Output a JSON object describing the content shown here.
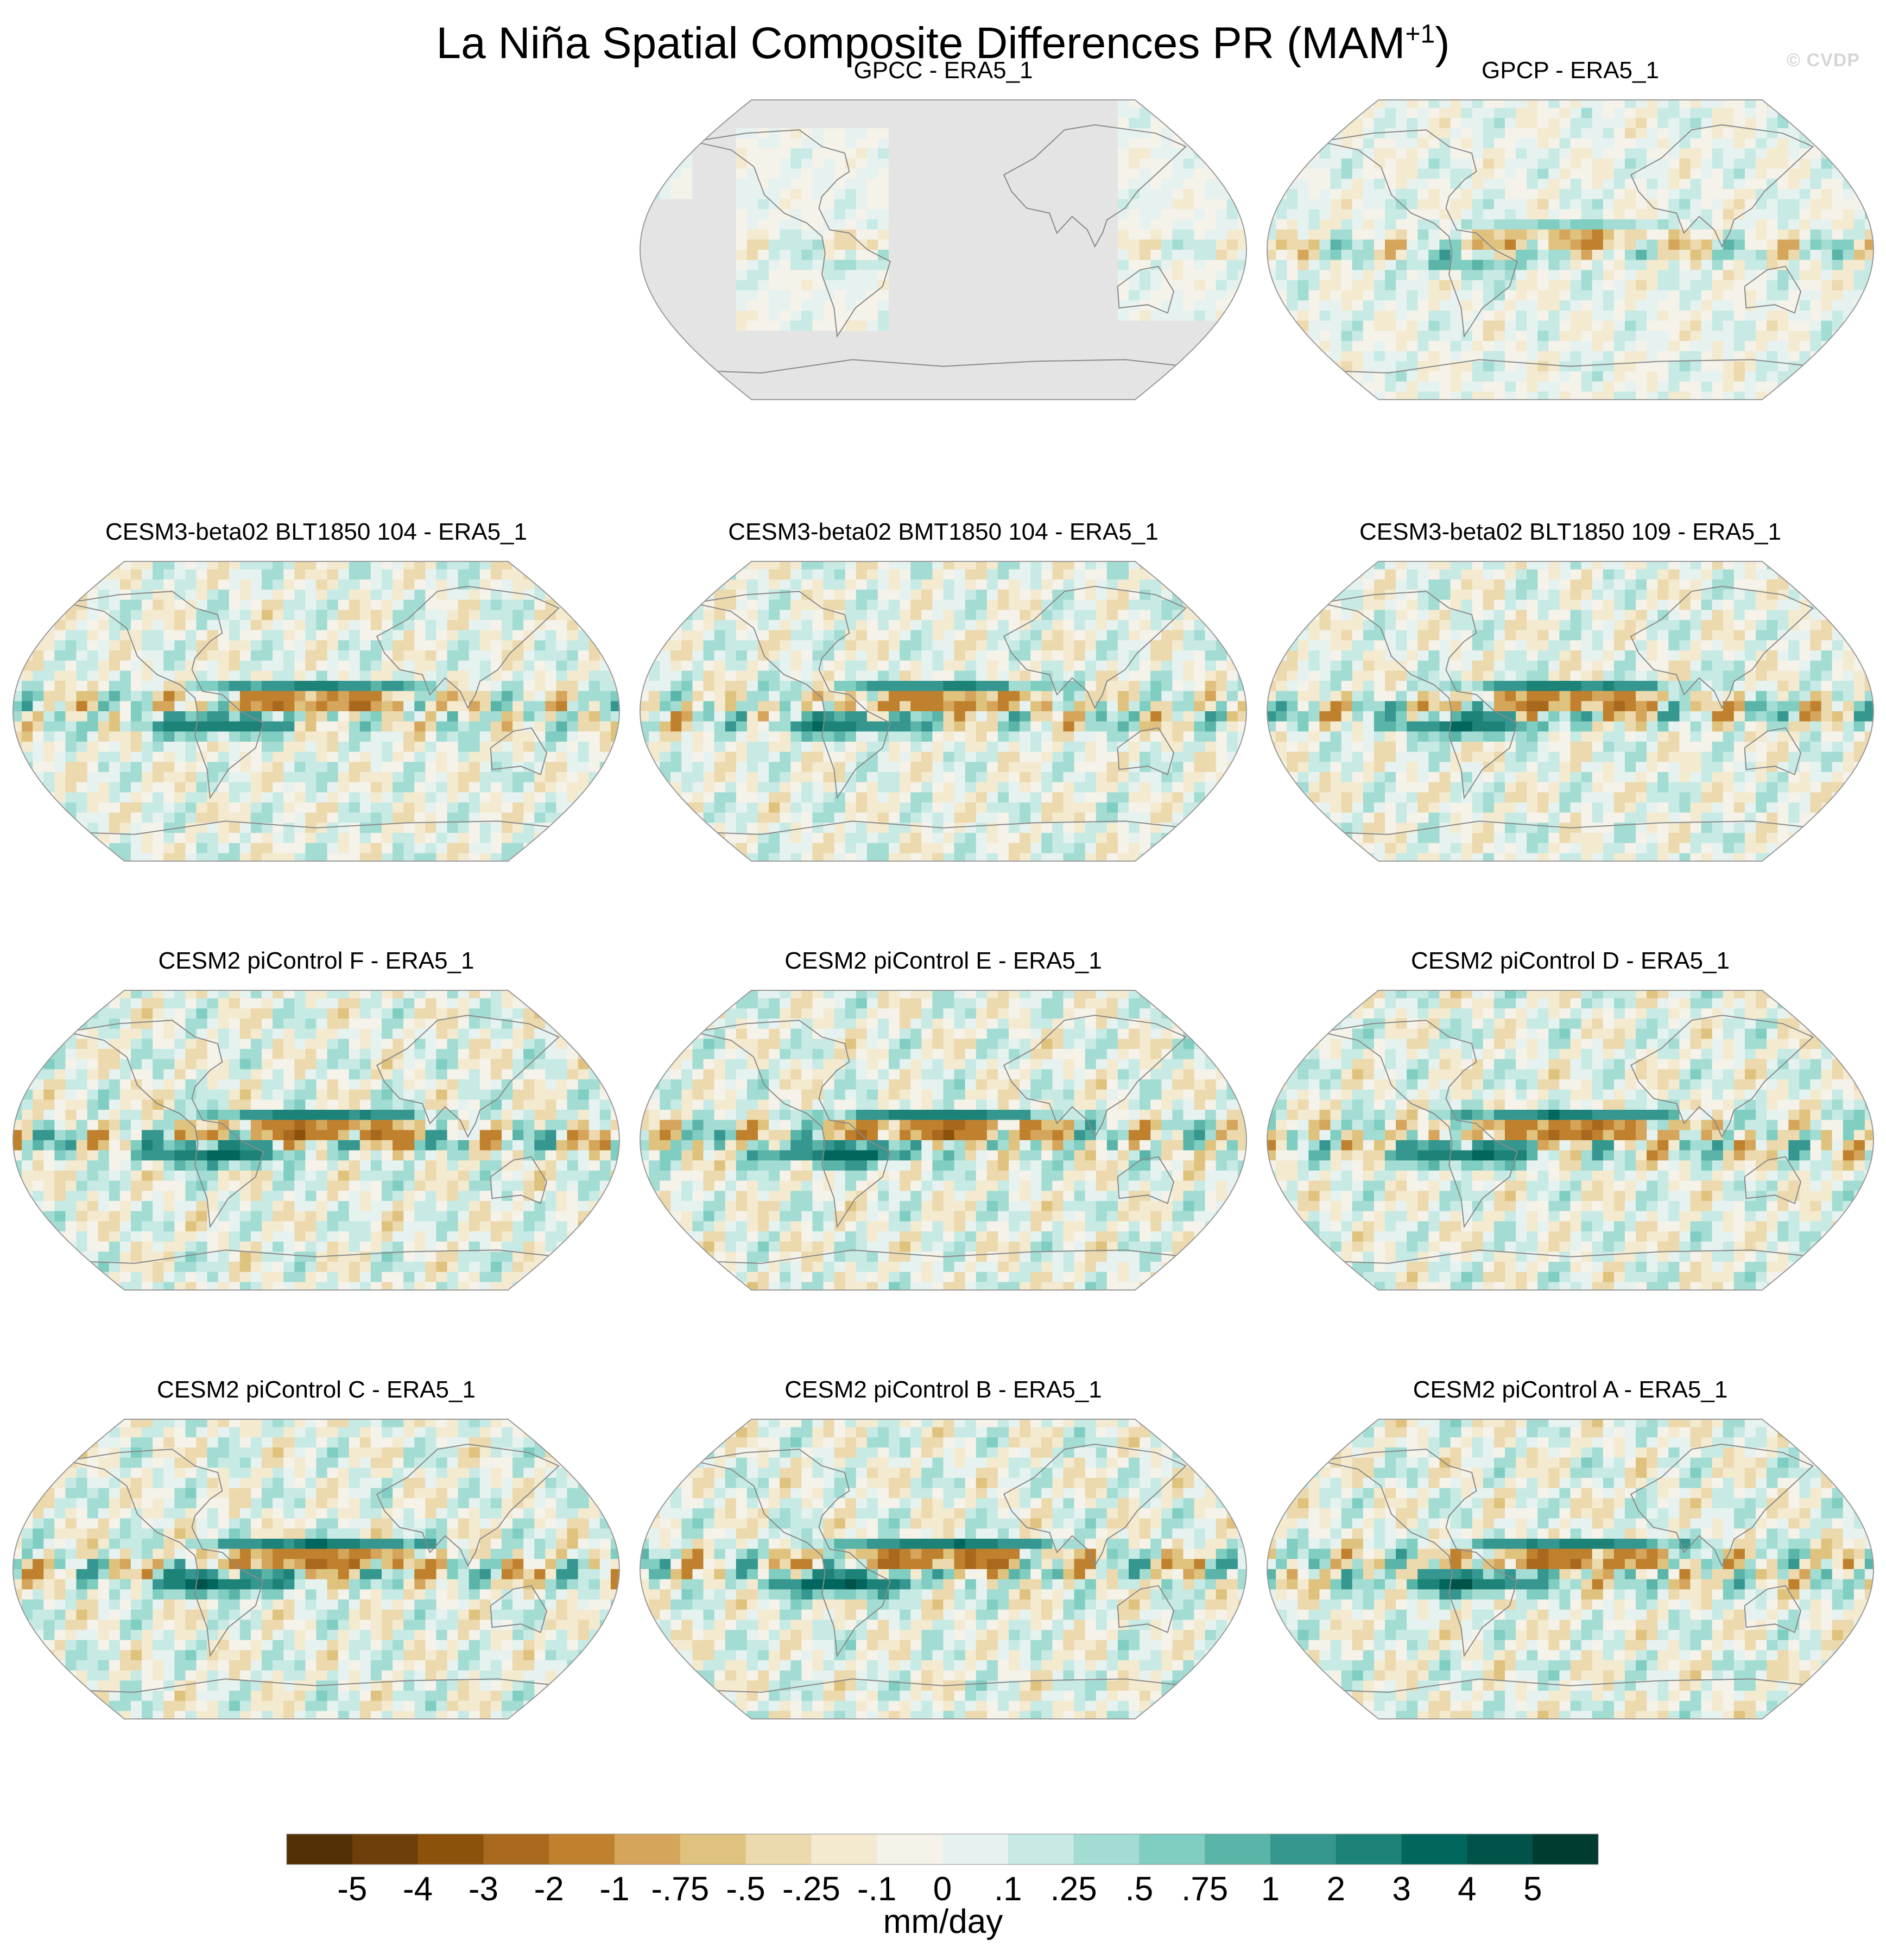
{
  "page": {
    "title_main": "La Niña Spatial Composite Differences PR (MAM",
    "title_sup": "+1",
    "title_close": ")",
    "watermark": "© CVDP"
  },
  "colors": {
    "land_mask": "#e4e4e4",
    "coastline": "#8a8a8a",
    "map_edge": "#9a9a9a"
  },
  "chart_data": {
    "type": "heatmap",
    "projection": "Robinson",
    "title": "La Niña Spatial Composite Differences PR (MAM+1)",
    "panels": [
      {
        "name": "",
        "title": "",
        "blank": true
      },
      {
        "name": "GPCC",
        "title": "GPCC - ERA5_1",
        "land_only": true,
        "pattern": {
          "tropical_dry": -1.0,
          "tropical_wet": 0.4,
          "noise": 0.4
        }
      },
      {
        "name": "GPCP",
        "title": "GPCP - ERA5_1",
        "pattern": {
          "tropical_dry": -1.8,
          "tropical_wet": 0.8,
          "noise": 0.5
        }
      },
      {
        "name": "CESM3-beta02 BLT1850 104",
        "title": "CESM3-beta02 BLT1850 104 - ERA5_1",
        "pattern": {
          "tropical_dry": -3.5,
          "tropical_wet": 3.0,
          "noise": 0.8
        }
      },
      {
        "name": "CESM3-beta02 BMT1850 104",
        "title": "CESM3-beta02 BMT1850 104 - ERA5_1",
        "pattern": {
          "tropical_dry": -3.2,
          "tropical_wet": 2.8,
          "noise": 0.8
        }
      },
      {
        "name": "CESM3-beta02 BLT1850 109",
        "title": "CESM3-beta02 BLT1850 109 - ERA5_1",
        "pattern": {
          "tropical_dry": -3.4,
          "tropical_wet": 3.2,
          "noise": 0.8
        }
      },
      {
        "name": "CESM2 piControl F",
        "title": "CESM2 piControl F - ERA5_1",
        "pattern": {
          "tropical_dry": -4.0,
          "tropical_wet": 3.6,
          "noise": 0.9
        }
      },
      {
        "name": "CESM2 piControl E",
        "title": "CESM2 piControl E - ERA5_1",
        "pattern": {
          "tropical_dry": -4.2,
          "tropical_wet": 3.8,
          "noise": 0.9
        }
      },
      {
        "name": "CESM2 piControl D",
        "title": "CESM2 piControl D - ERA5_1",
        "pattern": {
          "tropical_dry": -4.0,
          "tropical_wet": 3.6,
          "noise": 0.9
        }
      },
      {
        "name": "CESM2 piControl C",
        "title": "CESM2 piControl C - ERA5_1",
        "pattern": {
          "tropical_dry": -4.1,
          "tropical_wet": 3.9,
          "noise": 0.9
        }
      },
      {
        "name": "CESM2 piControl B",
        "title": "CESM2 piControl B - ERA5_1",
        "pattern": {
          "tropical_dry": -4.3,
          "tropical_wet": 4.0,
          "noise": 0.9
        }
      },
      {
        "name": "CESM2 piControl A",
        "title": "CESM2 piControl A - ERA5_1",
        "pattern": {
          "tropical_dry": -3.9,
          "tropical_wet": 3.6,
          "noise": 0.9
        }
      }
    ],
    "colorbar": {
      "label": "mm/day",
      "levels": [
        "-5",
        "-4",
        "-3",
        "-2",
        "-1",
        "-.75",
        "-.5",
        "-.25",
        "-.1",
        "0",
        ".1",
        ".25",
        ".5",
        ".75",
        "1",
        "2",
        "3",
        "4",
        "5"
      ],
      "level_values": [
        -5,
        -4,
        -3,
        -2,
        -1,
        -0.75,
        -0.5,
        -0.25,
        -0.1,
        0,
        0.1,
        0.25,
        0.5,
        0.75,
        1,
        2,
        3,
        4,
        5
      ],
      "colors": [
        "#543005",
        "#6e3f0a",
        "#8c510a",
        "#a8691f",
        "#bf812d",
        "#d5a55c",
        "#dfc27d",
        "#ecd9ad",
        "#f3ead0",
        "#f5f2ea",
        "#e6f2f0",
        "#c7eae5",
        "#a3dcd3",
        "#80cdc1",
        "#5ab4a8",
        "#35978f",
        "#1d8278",
        "#01665e",
        "#015248",
        "#003c30"
      ]
    }
  }
}
